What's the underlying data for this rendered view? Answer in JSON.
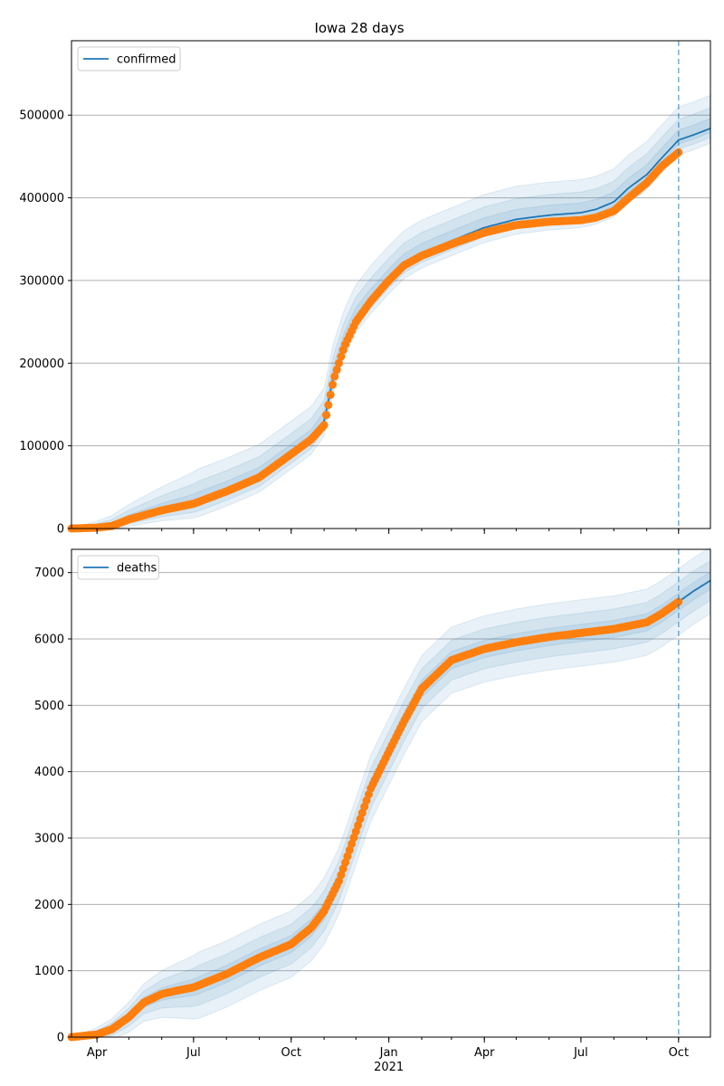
{
  "chart_data": [
    {
      "type": "line",
      "title": "Iowa 28 days",
      "legend": "top-left",
      "legend_entries": [
        "confirmed"
      ],
      "xlabel": "",
      "ylabel": "",
      "grid": "y",
      "x_range": [
        "2020-03-08",
        "2021-10-31"
      ],
      "ylim": [
        0,
        590000
      ],
      "yticks": [
        0,
        100000,
        200000,
        300000,
        400000,
        500000
      ],
      "ytick_labels": [
        "0",
        "100000",
        "200000",
        "300000",
        "400000",
        "500000"
      ],
      "forecast_start": "2021-10-01",
      "series": [
        {
          "name": "confirmed",
          "role": "model",
          "color": "#1f77b4",
          "x": [
            "2020-03-08",
            "2020-04-01",
            "2020-04-15",
            "2020-05-01",
            "2020-06-01",
            "2020-07-01",
            "2020-08-01",
            "2020-09-01",
            "2020-10-01",
            "2020-10-20",
            "2020-11-01",
            "2020-11-10",
            "2020-11-20",
            "2020-12-01",
            "2020-12-15",
            "2021-01-01",
            "2021-01-15",
            "2021-02-01",
            "2021-03-01",
            "2021-04-01",
            "2021-05-01",
            "2021-06-01",
            "2021-07-01",
            "2021-07-15",
            "2021-08-01",
            "2021-08-15",
            "2021-09-01",
            "2021-09-15",
            "2021-10-01",
            "2021-10-15",
            "2021-10-31"
          ],
          "y": [
            0,
            1000,
            3000,
            11000,
            22000,
            30000,
            45000,
            62000,
            90000,
            108000,
            130000,
            185000,
            225000,
            255000,
            278000,
            302000,
            320000,
            333000,
            348000,
            364000,
            374000,
            379000,
            382000,
            386000,
            395000,
            412000,
            428000,
            448000,
            470000,
            476000,
            484000
          ]
        },
        {
          "name": "observed confirmed",
          "role": "observed",
          "color": "#ff7f0e",
          "x": [
            "2020-03-08",
            "2020-04-01",
            "2020-04-15",
            "2020-05-01",
            "2020-06-01",
            "2020-07-01",
            "2020-08-01",
            "2020-09-01",
            "2020-10-01",
            "2020-10-20",
            "2020-11-01",
            "2020-11-10",
            "2020-11-20",
            "2020-12-01",
            "2020-12-15",
            "2021-01-01",
            "2021-01-15",
            "2021-02-01",
            "2021-03-01",
            "2021-04-01",
            "2021-05-01",
            "2021-06-01",
            "2021-07-01",
            "2021-07-15",
            "2021-08-01",
            "2021-08-15",
            "2021-09-01",
            "2021-09-15",
            "2021-10-01"
          ],
          "y": [
            0,
            1000,
            3000,
            11000,
            22000,
            30000,
            45000,
            62000,
            90000,
            108000,
            125000,
            180000,
            220000,
            250000,
            275000,
            300000,
            318000,
            330000,
            344000,
            358000,
            367000,
            371000,
            373000,
            376000,
            384000,
            400000,
            418000,
            438000,
            455000
          ]
        }
      ],
      "bands": [
        {
          "name": "outer",
          "lower_offset": 18000,
          "upper_offset": 40000
        },
        {
          "name": "middle",
          "lower_offset": 11000,
          "upper_offset": 25000
        },
        {
          "name": "inner",
          "lower_offset": 5000,
          "upper_offset": 12000
        }
      ]
    },
    {
      "type": "line",
      "title": "",
      "legend": "top-left",
      "legend_entries": [
        "deaths"
      ],
      "xlabel": "",
      "ylabel": "",
      "grid": "y",
      "x_range": [
        "2020-03-08",
        "2021-10-31"
      ],
      "ylim": [
        0,
        7350
      ],
      "yticks": [
        0,
        1000,
        2000,
        3000,
        4000,
        5000,
        6000,
        7000
      ],
      "ytick_labels": [
        "0",
        "1000",
        "2000",
        "3000",
        "4000",
        "5000",
        "6000",
        "7000"
      ],
      "forecast_start": "2021-10-01",
      "xticks": [
        {
          "date": "2020-04-01",
          "label": "Apr"
        },
        {
          "date": "2020-07-01",
          "label": "Jul"
        },
        {
          "date": "2020-10-01",
          "label": "Oct"
        },
        {
          "date": "2021-01-01",
          "label": "Jan"
        },
        {
          "date": "2021-04-01",
          "label": "Apr"
        },
        {
          "date": "2021-07-01",
          "label": "Jul"
        },
        {
          "date": "2021-10-01",
          "label": "Oct"
        }
      ],
      "year_label": "2021",
      "series": [
        {
          "name": "deaths",
          "role": "model",
          "color": "#1f77b4",
          "x": [
            "2020-03-08",
            "2020-04-01",
            "2020-04-15",
            "2020-05-01",
            "2020-05-15",
            "2020-06-01",
            "2020-06-15",
            "2020-07-01",
            "2020-08-01",
            "2020-09-01",
            "2020-10-01",
            "2020-10-20",
            "2020-11-01",
            "2020-11-15",
            "2020-12-01",
            "2020-12-15",
            "2021-01-01",
            "2021-01-15",
            "2021-02-01",
            "2021-03-01",
            "2021-04-01",
            "2021-05-01",
            "2021-06-01",
            "2021-07-01",
            "2021-08-01",
            "2021-09-01",
            "2021-09-15",
            "2021-10-01",
            "2021-10-15",
            "2021-10-31"
          ],
          "y": [
            0,
            40,
            120,
            300,
            520,
            650,
            700,
            750,
            950,
            1200,
            1400,
            1650,
            1900,
            2350,
            3100,
            3750,
            4300,
            4750,
            5250,
            5680,
            5850,
            5950,
            6030,
            6090,
            6150,
            6250,
            6380,
            6560,
            6720,
            6880
          ]
        },
        {
          "name": "observed deaths",
          "role": "observed",
          "color": "#ff7f0e",
          "x": [
            "2020-03-08",
            "2020-04-01",
            "2020-04-15",
            "2020-05-01",
            "2020-05-15",
            "2020-06-01",
            "2020-06-15",
            "2020-07-01",
            "2020-08-01",
            "2020-09-01",
            "2020-10-01",
            "2020-10-20",
            "2020-11-01",
            "2020-11-15",
            "2020-12-01",
            "2020-12-15",
            "2021-01-01",
            "2021-01-15",
            "2021-02-01",
            "2021-03-01",
            "2021-04-01",
            "2021-05-01",
            "2021-06-01",
            "2021-07-01",
            "2021-08-01",
            "2021-09-01",
            "2021-09-15",
            "2021-10-01"
          ],
          "y": [
            0,
            40,
            120,
            300,
            520,
            650,
            700,
            750,
            950,
            1200,
            1400,
            1650,
            1900,
            2350,
            3100,
            3750,
            4300,
            4750,
            5250,
            5680,
            5850,
            5950,
            6030,
            6090,
            6150,
            6250,
            6380,
            6560
          ]
        }
      ],
      "bands": [
        {
          "name": "outer",
          "lower_offset": 500,
          "upper_offset": 500
        },
        {
          "name": "middle",
          "lower_offset": 300,
          "upper_offset": 300
        },
        {
          "name": "inner",
          "lower_offset": 130,
          "upper_offset": 130
        }
      ]
    }
  ]
}
